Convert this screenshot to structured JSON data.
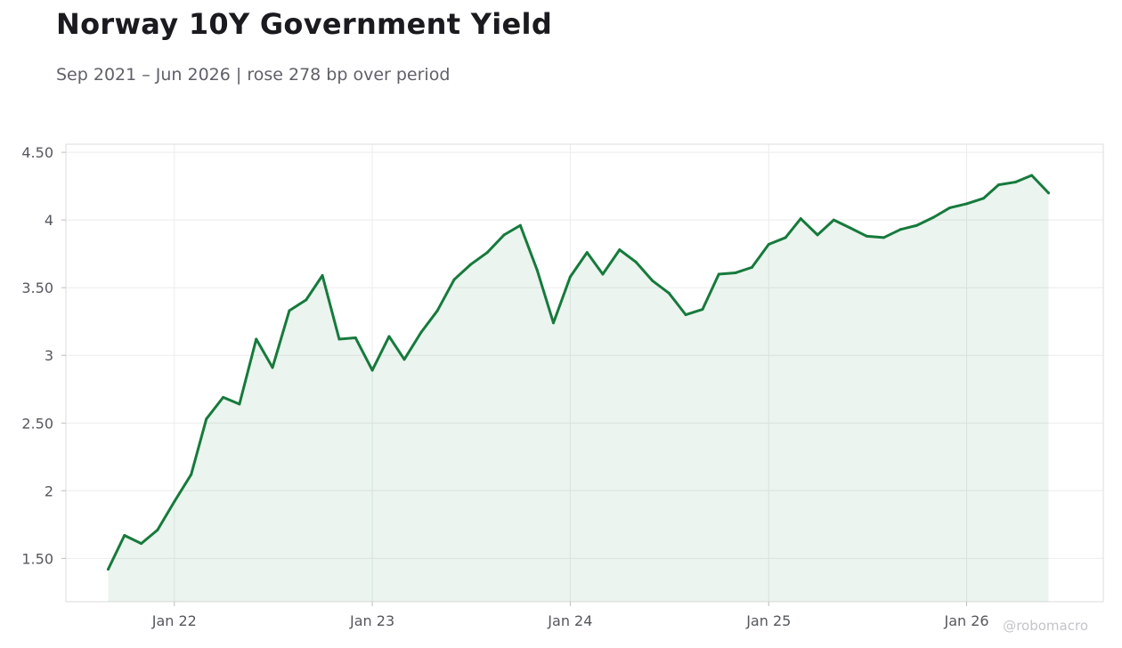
{
  "title": "Norway 10Y Government Yield",
  "subtitle": "Sep 2021 – Jun 2026 | rose 278 bp over period",
  "watermark": "@robomacro",
  "colors": {
    "line": "#167a3c",
    "fill": "#167a3c",
    "grid": "#ececec",
    "frame": "#dedede",
    "text": "#55575d"
  },
  "chart_data": {
    "type": "area",
    "title": "Norway 10Y Government Yield",
    "xlabel": "",
    "ylabel": "",
    "ylim": [
      1.18,
      4.56
    ],
    "xlim": [
      "2021-06-15",
      "2026-09-10"
    ],
    "grid": true,
    "legend": "none",
    "x_ticks": [
      {
        "date": "2022-01-01",
        "label": "Jan 22"
      },
      {
        "date": "2023-01-01",
        "label": "Jan 23"
      },
      {
        "date": "2024-01-01",
        "label": "Jan 24"
      },
      {
        "date": "2025-01-01",
        "label": "Jan 25"
      },
      {
        "date": "2026-01-01",
        "label": "Jan 26"
      }
    ],
    "y_ticks": [
      {
        "value": 1.5,
        "label": "1.50"
      },
      {
        "value": 2,
        "label": "2"
      },
      {
        "value": 2.5,
        "label": "2.50"
      },
      {
        "value": 3,
        "label": "3"
      },
      {
        "value": 3.5,
        "label": "3.50"
      },
      {
        "value": 4,
        "label": "4"
      },
      {
        "value": 4.5,
        "label": "4.50"
      }
    ],
    "x": [
      "2021-09-01",
      "2021-10-01",
      "2021-11-01",
      "2021-12-01",
      "2022-01-01",
      "2022-02-01",
      "2022-03-01",
      "2022-04-01",
      "2022-05-01",
      "2022-06-01",
      "2022-07-01",
      "2022-08-01",
      "2022-09-01",
      "2022-10-01",
      "2022-11-01",
      "2022-12-01",
      "2023-01-01",
      "2023-02-01",
      "2023-03-01",
      "2023-04-01",
      "2023-05-01",
      "2023-06-01",
      "2023-07-01",
      "2023-08-01",
      "2023-09-01",
      "2023-10-01",
      "2023-11-01",
      "2023-12-01",
      "2024-01-01",
      "2024-02-01",
      "2024-03-01",
      "2024-04-01",
      "2024-05-01",
      "2024-06-01",
      "2024-07-01",
      "2024-08-01",
      "2024-09-01",
      "2024-10-01",
      "2024-11-01",
      "2024-12-01",
      "2025-01-01",
      "2025-02-01",
      "2025-03-01",
      "2025-04-01",
      "2025-05-01",
      "2025-06-01",
      "2025-07-01",
      "2025-08-01",
      "2025-09-01",
      "2025-10-01",
      "2025-11-01",
      "2025-12-01",
      "2026-01-01",
      "2026-02-01",
      "2026-03-01",
      "2026-04-01",
      "2026-05-01",
      "2026-06-01"
    ],
    "series": [
      {
        "values": [
          1.42,
          1.67,
          1.61,
          1.71,
          1.92,
          2.12,
          2.53,
          2.69,
          2.64,
          3.12,
          2.91,
          3.33,
          3.41,
          3.59,
          3.12,
          3.13,
          2.89,
          3.14,
          2.97,
          3.17,
          3.33,
          3.56,
          3.67,
          3.76,
          3.89,
          3.96,
          3.63,
          3.24,
          3.58,
          3.76,
          3.6,
          3.78,
          3.69,
          3.55,
          3.46,
          3.3,
          3.34,
          3.6,
          3.61,
          3.65,
          3.82,
          3.87,
          4.01,
          3.89,
          4.0,
          3.94,
          3.88,
          3.87,
          3.93,
          3.96,
          4.02,
          4.09,
          4.12,
          4.16,
          4.26,
          4.28,
          4.33,
          4.2
        ]
      }
    ]
  }
}
